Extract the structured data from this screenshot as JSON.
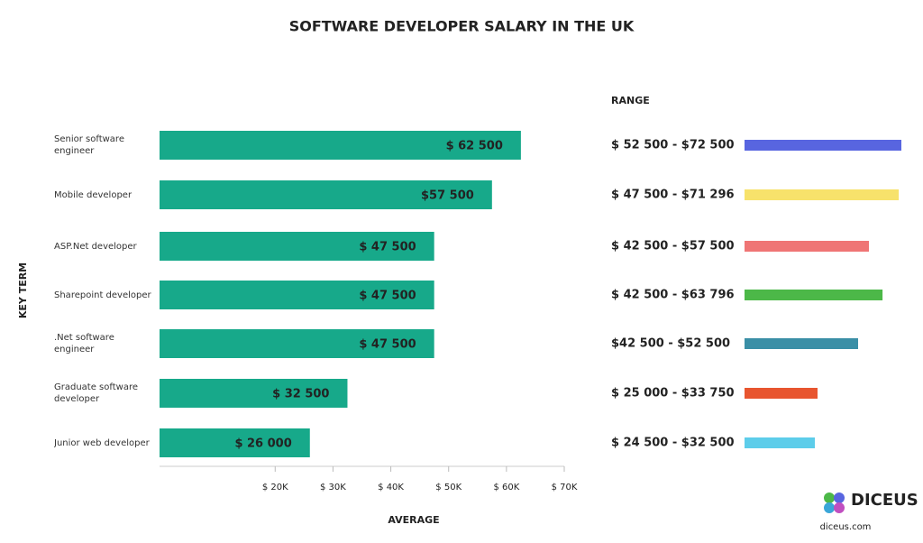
{
  "chart_data": {
    "type": "bar",
    "orientation": "horizontal",
    "title": "SOFTWARE DEVELOPER SALARY IN THE UK",
    "y_label": "KEY TERM",
    "x_label": "AVERAGE",
    "categories": [
      "Senior software engineer",
      "Mobile developer",
      "ASP.Net developer",
      "Sharepoint developer",
      ".Net software engineer",
      "Graduate software developer",
      "Junior web developer"
    ],
    "values": [
      62500,
      57500,
      47500,
      47500,
      47500,
      32500,
      26000
    ],
    "value_labels": [
      "$ 62 500",
      "$57 500",
      "$ 47 500",
      "$ 47 500",
      "$ 47 500",
      "$ 32 500",
      "$  26 000"
    ],
    "color": "#17a98a",
    "xlim": [
      0,
      70000
    ],
    "xticks": [
      {
        "value": 20000,
        "label": "$ 20K"
      },
      {
        "value": 30000,
        "label": "$ 30K"
      },
      {
        "value": 40000,
        "label": "$ 40K"
      },
      {
        "value": 50000,
        "label": "$ 50K"
      },
      {
        "value": 60000,
        "label": "$ 60K"
      },
      {
        "value": 70000,
        "label": "$ 70K"
      }
    ],
    "range_title": "RANGE",
    "ranges": [
      {
        "label": "$ 52 500 - $72 500",
        "low": 52500,
        "high": 72500,
        "color": "#5865e0"
      },
      {
        "label": "$ 47 500 - $71 296",
        "low": 47500,
        "high": 71296,
        "color": "#f7e26b"
      },
      {
        "label": "$ 42 500 - $57 500",
        "low": 42500,
        "high": 57500,
        "color": "#ef7575"
      },
      {
        "label": "$  42 500 - $63 796",
        "low": 42500,
        "high": 63796,
        "color": "#4cb848"
      },
      {
        "label": "$42 500  - $52 500",
        "low": 42500,
        "high": 52500,
        "color": "#3a8fa6"
      },
      {
        "label": "$ 25 000 - $33 750",
        "low": 25000,
        "high": 33750,
        "color": "#e8552f"
      },
      {
        "label": "$  24 500 - $32 500",
        "low": 24500,
        "high": 32500,
        "color": "#5dcdea"
      }
    ]
  },
  "footer": {
    "logo": "DICEUS",
    "site": "diceus.com"
  }
}
